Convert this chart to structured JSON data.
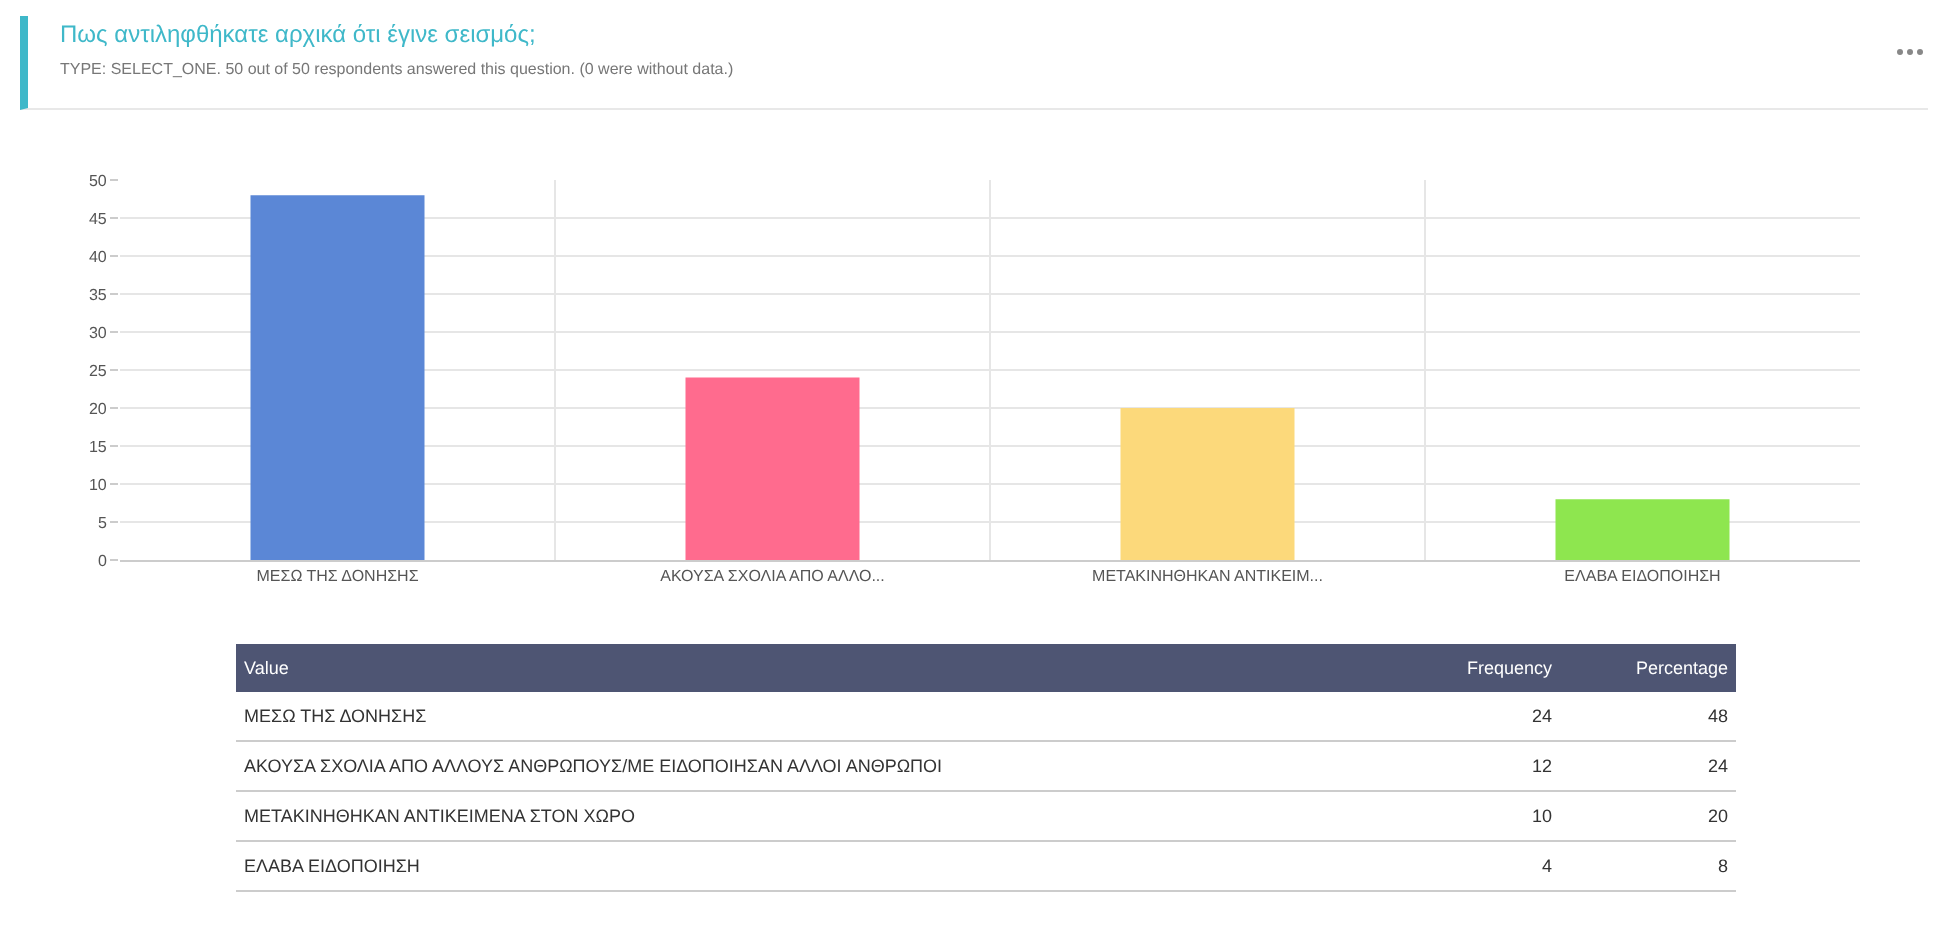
{
  "chart_data": [
    {
      "type": "bar",
      "title": "Πως αντιληφθήκατε αρχικά ότι έγινε σεισμός;",
      "subtitle": "TYPE: SELECT_ONE. 50 out of 50 respondents answered this question. (0 were without data.)",
      "categories": [
        "ΜΕΣΩ ΤΗΣ ΔΟΝΗΣΗΣ",
        "ΑΚΟΥΣΑ ΣΧΟΛΙΑ ΑΠΟ ΑΛΛΟ...",
        "ΜΕΤΑΚΙΝΗΘΗΚΑΝ ΑΝΤΙΚΕΙΜ...",
        "ΕΛΑΒΑ ΕΙΔΟΠΟΙΗΣΗ"
      ],
      "values": [
        48,
        24,
        20,
        8
      ],
      "colors": [
        "#5b87d6",
        "#ff6b8e",
        "#fcd97b",
        "#8ee64f"
      ],
      "ylim": [
        0,
        50
      ],
      "yticks": [
        0,
        5,
        10,
        15,
        20,
        25,
        30,
        35,
        40,
        45,
        50
      ],
      "grid": true
    },
    {
      "type": "other",
      "xlabel": "Value",
      "categories": [
        "ΜΕΣΩ ΤΗΣ ΔΟΝΗΣΗΣ",
        "ΑΚΟΥΣΑ ΣΧΟΛΙΑ ΑΠΟ ΑΛΛΟΥΣ ΑΝΘΡΩΠΟΥΣ/ΜΕ ΕΙΔΟΠΟΙΗΣΑΝ ΑΛΛΟΙ ΑΝΘΡΩΠΟΙ",
        "ΜΕΤΑΚΙΝΗΘΗΚΑΝ ΑΝΤΙΚΕΙΜΕΝΑ ΣΤΟΝ ΧΩΡΟ",
        "ΕΛΑΒΑ ΕΙΔΟΠΟΙΗΣΗ"
      ],
      "series": [
        {
          "name": "Frequency",
          "values": [
            24,
            12,
            10,
            4
          ]
        },
        {
          "name": "Percentage",
          "values": [
            48,
            24,
            20,
            8
          ]
        }
      ],
      "data_labels": true
    }
  ]
}
